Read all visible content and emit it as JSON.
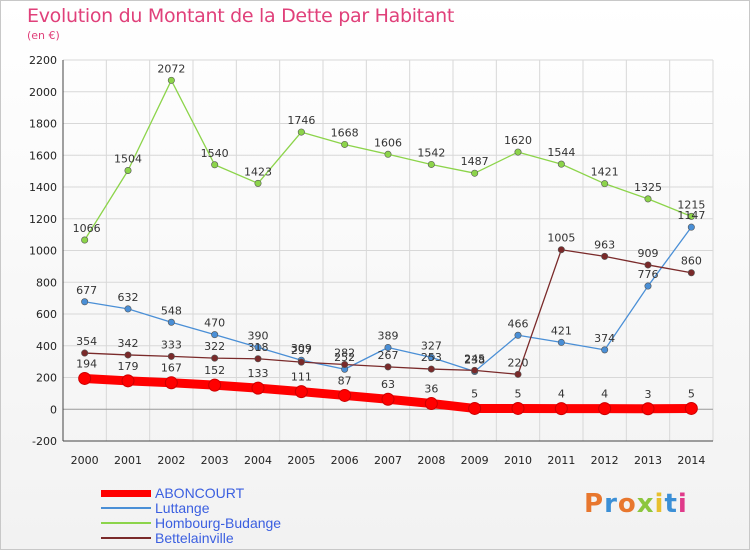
{
  "header": {
    "title": "Evolution du Montant de la Dette par Habitant",
    "unit": "(en €)"
  },
  "logo": {
    "text": "Proxiti",
    "colors": [
      "#e8772e",
      "#3b8fd6",
      "#e8772e",
      "#8cc63e",
      "#e8c02e",
      "#3b8fd6",
      "#e03a8a"
    ]
  },
  "chart_data": {
    "type": "line",
    "x": [
      2000,
      2001,
      2002,
      2003,
      2004,
      2005,
      2006,
      2007,
      2008,
      2009,
      2010,
      2011,
      2012,
      2013,
      2014
    ],
    "ylim": [
      -200,
      2200
    ],
    "yticks": [
      -200,
      0,
      200,
      400,
      600,
      800,
      1000,
      1200,
      1400,
      1600,
      1800,
      2000,
      2200
    ],
    "grid": true,
    "legend_position": "bottom-left",
    "series": [
      {
        "name": "ABONCOURT",
        "color": "#ff0000",
        "values": [
          194,
          179,
          167,
          152,
          133,
          111,
          87,
          63,
          36,
          5,
          5,
          4,
          4,
          3,
          5
        ]
      },
      {
        "name": "Luttange",
        "color": "#4a8fd6",
        "values": [
          677,
          632,
          548,
          470,
          390,
          309,
          252,
          389,
          327,
          238,
          466,
          421,
          374,
          776,
          1147
        ]
      },
      {
        "name": "Hombourg-Budange",
        "color": "#8cd44a",
        "values": [
          1066,
          1504,
          2072,
          1540,
          1423,
          1746,
          1668,
          1606,
          1542,
          1487,
          1620,
          1544,
          1421,
          1325,
          1215
        ]
      },
      {
        "name": "Bettelainville",
        "color": "#7a2a2a",
        "values": [
          354,
          342,
          333,
          322,
          318,
          297,
          282,
          267,
          253,
          245,
          220,
          1005,
          963,
          909,
          860
        ]
      }
    ]
  }
}
